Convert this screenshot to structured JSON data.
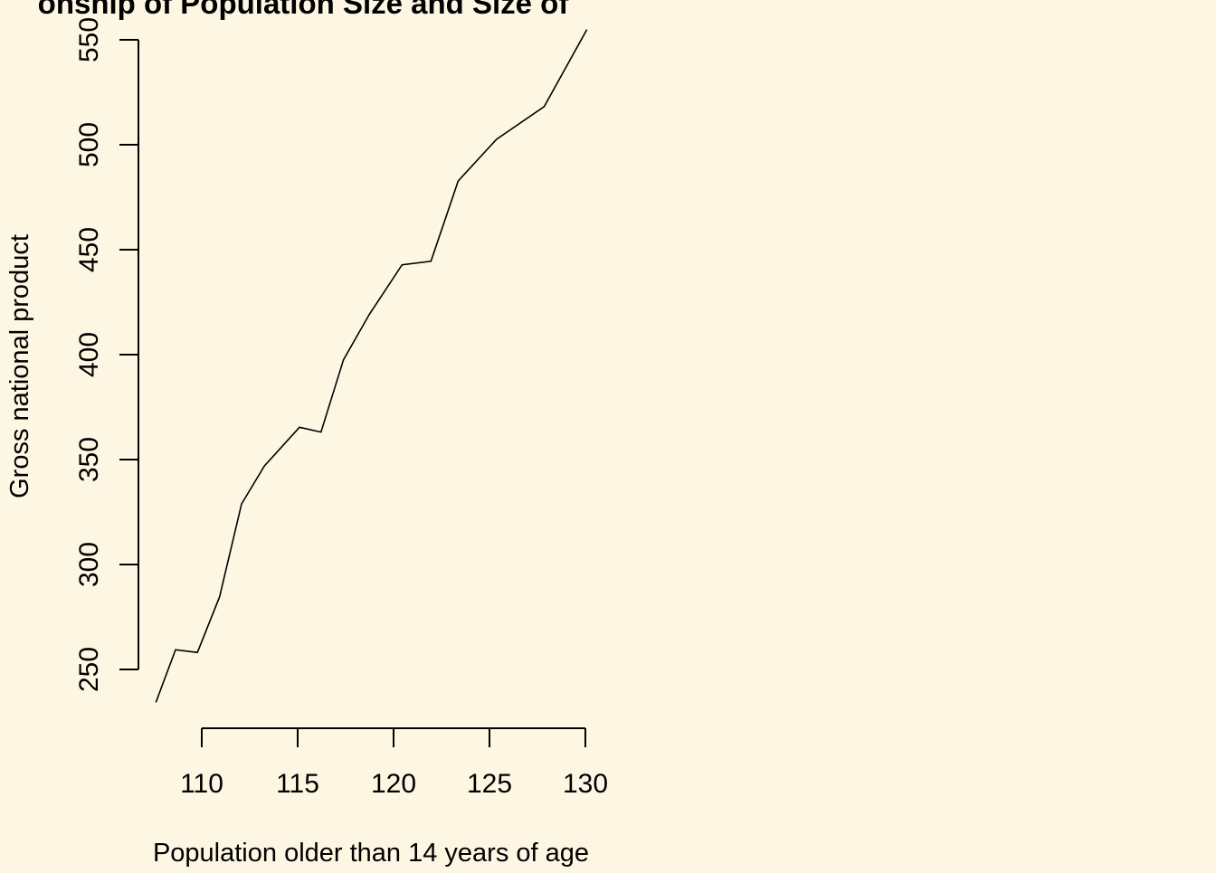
{
  "chart_data": {
    "type": "line",
    "title": "onship of Population Size and Size of",
    "xlabel": "Population older than 14 years of age",
    "ylabel": "Gross national product",
    "xlim": [
      107,
      130.1
    ],
    "ylim": [
      234,
      550
    ],
    "x_ticks": [
      110,
      115,
      120,
      125,
      130
    ],
    "y_ticks": [
      250,
      300,
      350,
      400,
      450,
      500,
      550
    ],
    "grid": false,
    "legend": "none",
    "line_color": "#000000",
    "background_color": "#fdf6e3",
    "series": [
      {
        "x": [
          107.608,
          108.632,
          109.773,
          110.929,
          112.075,
          113.27,
          115.094,
          116.219,
          117.388,
          118.734,
          120.445,
          121.95,
          123.366,
          125.368,
          127.852,
          130.081
        ],
        "y": [
          234.3,
          259.4,
          258.1,
          284.6,
          328.9,
          347.0,
          365.4,
          363.1,
          397.5,
          419.2,
          442.8,
          444.5,
          482.7,
          502.6,
          518.2,
          554.9
        ]
      }
    ]
  }
}
